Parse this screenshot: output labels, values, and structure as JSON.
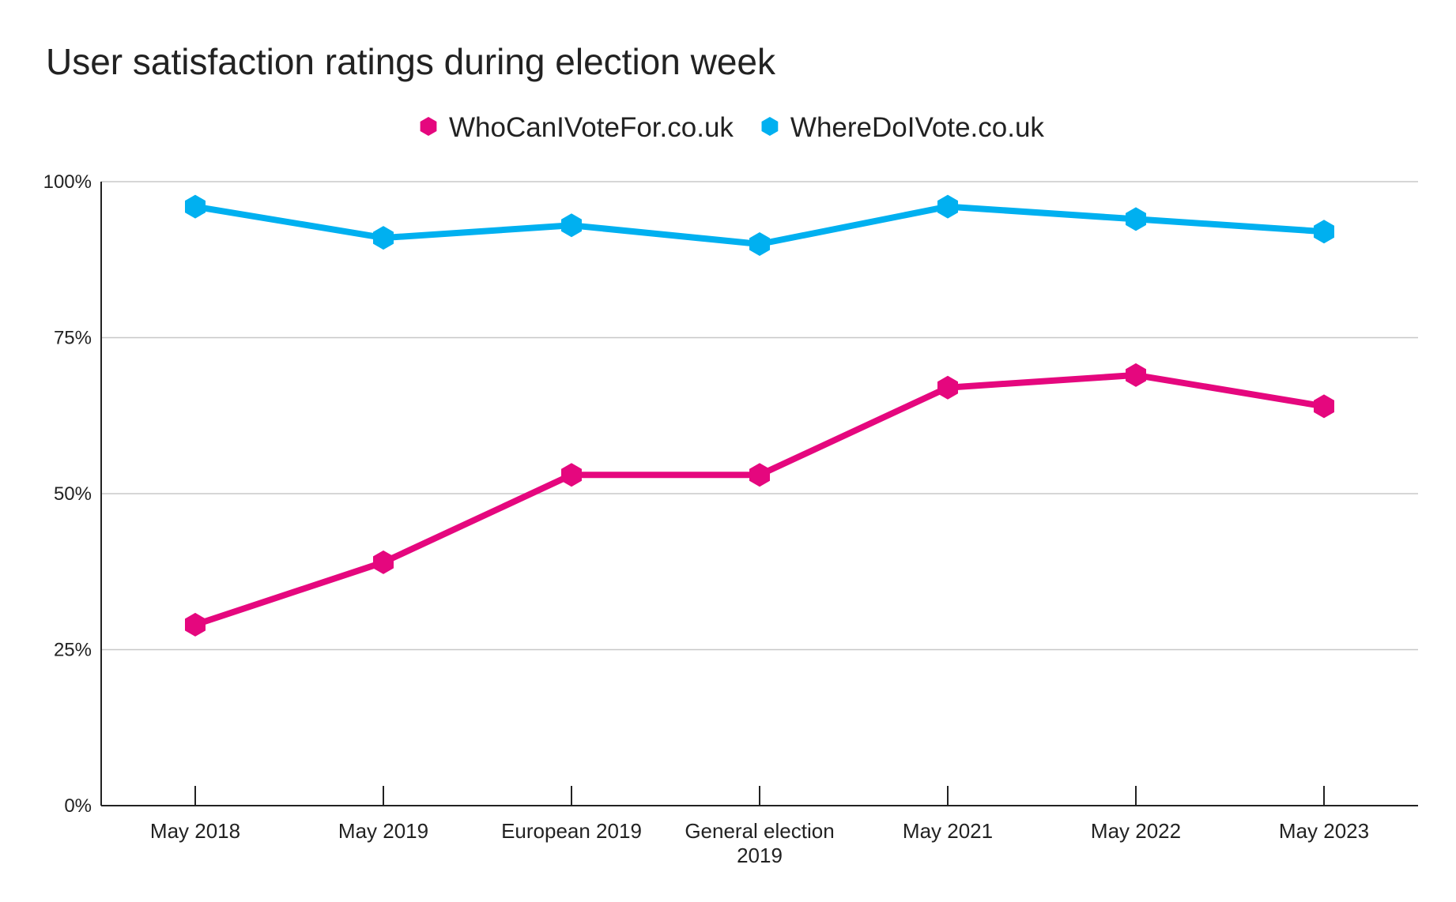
{
  "chart_data": {
    "type": "line",
    "title": "User satisfaction ratings during election week",
    "xlabel": "",
    "ylabel": "",
    "categories": [
      [
        "May 2018"
      ],
      [
        "May 2019"
      ],
      [
        "European 2019"
      ],
      [
        "General election",
        "2019"
      ],
      [
        "May 2021"
      ],
      [
        "May 2022"
      ],
      [
        "May 2023"
      ]
    ],
    "y_ticks": [
      0,
      25,
      50,
      75,
      100
    ],
    "y_tick_labels": [
      "0%",
      "25%",
      "50%",
      "75%",
      "100%"
    ],
    "ylim": [
      0,
      100
    ],
    "grid": true,
    "legend_position": "top-center",
    "series": [
      {
        "name": "WhoCanIVoteFor.co.uk",
        "color": "#e5077e",
        "values": [
          29,
          39,
          53,
          53,
          67,
          69,
          64
        ]
      },
      {
        "name": "WhereDoIVote.co.uk",
        "color": "#00b0f0",
        "values": [
          96,
          91,
          93,
          90,
          96,
          94,
          92
        ]
      }
    ],
    "colors": {
      "grid": "#c8c8c8",
      "axis": "#222222",
      "text": "#222222"
    },
    "marker": "hexagon"
  }
}
